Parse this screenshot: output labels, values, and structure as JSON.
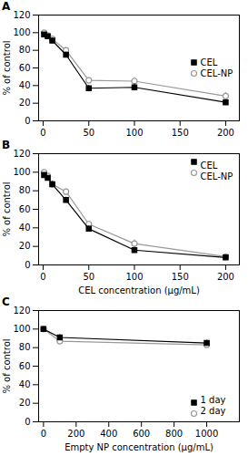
{
  "chart_data": [
    {
      "type": "line",
      "title": "A",
      "x": [
        1,
        5,
        10,
        25,
        50,
        100,
        200
      ],
      "xlim": [
        -5,
        215
      ],
      "xticks": [
        0,
        50,
        100,
        150,
        200
      ],
      "ylabel": "% of control",
      "ylim": [
        0,
        120
      ],
      "yticks": [
        0,
        20,
        40,
        60,
        80,
        100,
        120
      ],
      "legend": "center right",
      "series": [
        {
          "name": "CEL",
          "color": "#000000",
          "marker": "square",
          "values": [
            98,
            96,
            91,
            75,
            37,
            38,
            21
          ],
          "yerr": [
            2,
            2,
            3,
            3,
            3,
            4,
            3
          ]
        },
        {
          "name": "CEL-NP",
          "color": "#999999",
          "marker": "open circle",
          "values": [
            100,
            97,
            93,
            80,
            46,
            45,
            28
          ],
          "yerr": [
            2,
            2,
            3,
            3,
            3,
            4,
            4
          ]
        }
      ]
    },
    {
      "type": "line",
      "title": "B",
      "x": [
        1,
        5,
        10,
        25,
        50,
        100,
        200
      ],
      "xlabel": "CEL concentration (μg/mL)",
      "xlim": [
        -5,
        215
      ],
      "xticks": [
        0,
        50,
        100,
        150,
        200
      ],
      "ylabel": "% of control",
      "ylim": [
        0,
        120
      ],
      "yticks": [
        0,
        20,
        40,
        60,
        80,
        100,
        120
      ],
      "legend": "upper right",
      "series": [
        {
          "name": "CEL",
          "color": "#000000",
          "marker": "square",
          "values": [
            97,
            94,
            87,
            70,
            39,
            16,
            8
          ],
          "yerr": [
            2,
            2,
            3,
            3,
            3,
            3,
            2
          ]
        },
        {
          "name": "CEL-NP",
          "color": "#999999",
          "marker": "open circle",
          "values": [
            100,
            96,
            87,
            79,
            44,
            23,
            9
          ],
          "yerr": [
            2,
            2,
            3,
            3,
            3,
            4,
            2
          ]
        }
      ]
    },
    {
      "type": "line",
      "title": "C",
      "x": [
        0,
        100,
        1000
      ],
      "xlabel": "Empty NP concentration (μg/mL)",
      "xlim": [
        -30,
        1200
      ],
      "xticks": [
        0,
        200,
        400,
        600,
        800,
        1000
      ],
      "ylabel": "% of control",
      "ylim": [
        0,
        120
      ],
      "yticks": [
        0,
        20,
        40,
        60,
        80,
        100,
        120
      ],
      "legend": "lower right",
      "series": [
        {
          "name": "1 day",
          "color": "#000000",
          "marker": "square",
          "values": [
            100,
            91,
            85
          ],
          "yerr": [
            2,
            3,
            3
          ]
        },
        {
          "name": "2 day",
          "color": "#999999",
          "marker": "open circle",
          "values": [
            100,
            87,
            83
          ],
          "yerr": [
            2,
            3,
            3
          ]
        }
      ]
    }
  ]
}
